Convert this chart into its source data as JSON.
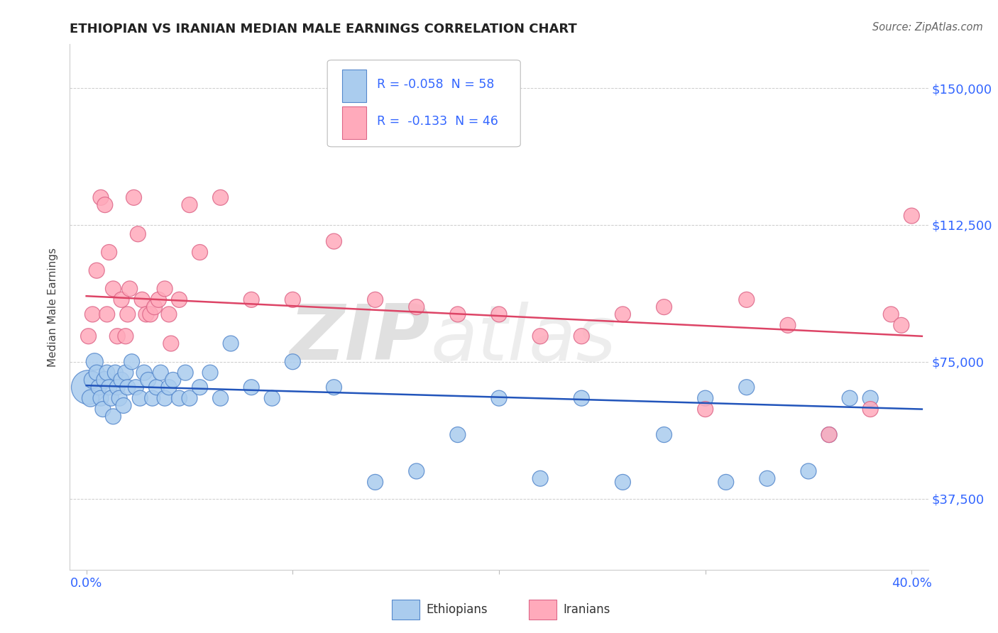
{
  "title": "ETHIOPIAN VS IRANIAN MEDIAN MALE EARNINGS CORRELATION CHART",
  "source_text": "Source: ZipAtlas.com",
  "ylabel": "Median Male Earnings",
  "xlim": [
    -0.008,
    0.408
  ],
  "ylim": [
    18000,
    162000
  ],
  "yticks": [
    37500,
    75000,
    112500,
    150000
  ],
  "ytick_labels": [
    "$37,500",
    "$75,000",
    "$112,500",
    "$150,000"
  ],
  "xtick_labels": [
    "0.0%",
    "",
    "",
    "",
    "40.0%"
  ],
  "grid_color": "#cccccc",
  "background_color": "#ffffff",
  "ethiopian_color": "#aaccee",
  "iranian_color": "#ffaabb",
  "ethiopian_edge": "#5588cc",
  "iranian_edge": "#dd6688",
  "line_blue": "#2255bb",
  "line_pink": "#dd4466",
  "legend_R1": "R = -0.058",
  "legend_N1": "N = 58",
  "legend_R2": "R =  -0.133",
  "legend_N2": "N = 46",
  "legend_text_color": "#3366ff",
  "watermark": "ZIPatlas",
  "watermark_color": "#cccccc",
  "ethiopians_label": "Ethiopians",
  "iranians_label": "Iranians",
  "ethiopian_x": [
    0.001,
    0.002,
    0.003,
    0.004,
    0.005,
    0.006,
    0.007,
    0.008,
    0.009,
    0.01,
    0.011,
    0.012,
    0.013,
    0.014,
    0.015,
    0.016,
    0.017,
    0.018,
    0.019,
    0.02,
    0.022,
    0.024,
    0.026,
    0.028,
    0.03,
    0.032,
    0.034,
    0.036,
    0.038,
    0.04,
    0.042,
    0.045,
    0.048,
    0.05,
    0.055,
    0.06,
    0.065,
    0.07,
    0.08,
    0.09,
    0.1,
    0.12,
    0.14,
    0.16,
    0.18,
    0.2,
    0.22,
    0.24,
    0.26,
    0.28,
    0.3,
    0.31,
    0.32,
    0.33,
    0.35,
    0.36,
    0.37,
    0.38
  ],
  "ethiopian_y": [
    68000,
    65000,
    70000,
    75000,
    72000,
    68000,
    65000,
    62000,
    70000,
    72000,
    68000,
    65000,
    60000,
    72000,
    68000,
    65000,
    70000,
    63000,
    72000,
    68000,
    75000,
    68000,
    65000,
    72000,
    70000,
    65000,
    68000,
    72000,
    65000,
    68000,
    70000,
    65000,
    72000,
    65000,
    68000,
    72000,
    65000,
    80000,
    68000,
    65000,
    75000,
    68000,
    42000,
    45000,
    55000,
    65000,
    43000,
    65000,
    42000,
    55000,
    65000,
    42000,
    68000,
    43000,
    45000,
    55000,
    65000,
    65000
  ],
  "ethiopian_sizes": [
    1200,
    300,
    300,
    300,
    250,
    250,
    250,
    250,
    300,
    250,
    250,
    250,
    250,
    250,
    250,
    250,
    250,
    250,
    250,
    250,
    250,
    250,
    250,
    250,
    250,
    250,
    250,
    250,
    250,
    250,
    250,
    250,
    250,
    250,
    250,
    250,
    250,
    250,
    250,
    250,
    250,
    250,
    250,
    250,
    250,
    250,
    250,
    250,
    250,
    250,
    250,
    250,
    250,
    250,
    250,
    250,
    250,
    250
  ],
  "iranian_x": [
    0.001,
    0.003,
    0.005,
    0.007,
    0.009,
    0.011,
    0.013,
    0.015,
    0.017,
    0.019,
    0.021,
    0.023,
    0.025,
    0.027,
    0.029,
    0.031,
    0.033,
    0.035,
    0.038,
    0.041,
    0.045,
    0.05,
    0.055,
    0.065,
    0.08,
    0.1,
    0.12,
    0.14,
    0.16,
    0.18,
    0.2,
    0.22,
    0.24,
    0.26,
    0.28,
    0.3,
    0.32,
    0.34,
    0.36,
    0.38,
    0.39,
    0.395,
    0.4,
    0.01,
    0.02,
    0.04
  ],
  "iranian_y": [
    82000,
    88000,
    100000,
    120000,
    118000,
    105000,
    95000,
    82000,
    92000,
    82000,
    95000,
    120000,
    110000,
    92000,
    88000,
    88000,
    90000,
    92000,
    95000,
    80000,
    92000,
    118000,
    105000,
    120000,
    92000,
    92000,
    108000,
    92000,
    90000,
    88000,
    88000,
    82000,
    82000,
    88000,
    90000,
    62000,
    92000,
    85000,
    55000,
    62000,
    88000,
    85000,
    115000,
    88000,
    88000,
    88000
  ],
  "iranian_sizes": [
    250,
    250,
    250,
    250,
    250,
    250,
    250,
    250,
    250,
    250,
    250,
    250,
    250,
    250,
    250,
    250,
    250,
    250,
    250,
    250,
    250,
    250,
    250,
    250,
    250,
    250,
    250,
    250,
    250,
    250,
    250,
    250,
    250,
    250,
    250,
    250,
    250,
    250,
    250,
    250,
    250,
    250,
    250,
    250,
    250,
    250
  ],
  "eth_line_x0": 0.0,
  "eth_line_x1": 0.405,
  "eth_line_y0": 68500,
  "eth_line_y1": 62000,
  "ira_line_x0": 0.0,
  "ira_line_x1": 0.405,
  "ira_line_y0": 93000,
  "ira_line_y1": 82000
}
